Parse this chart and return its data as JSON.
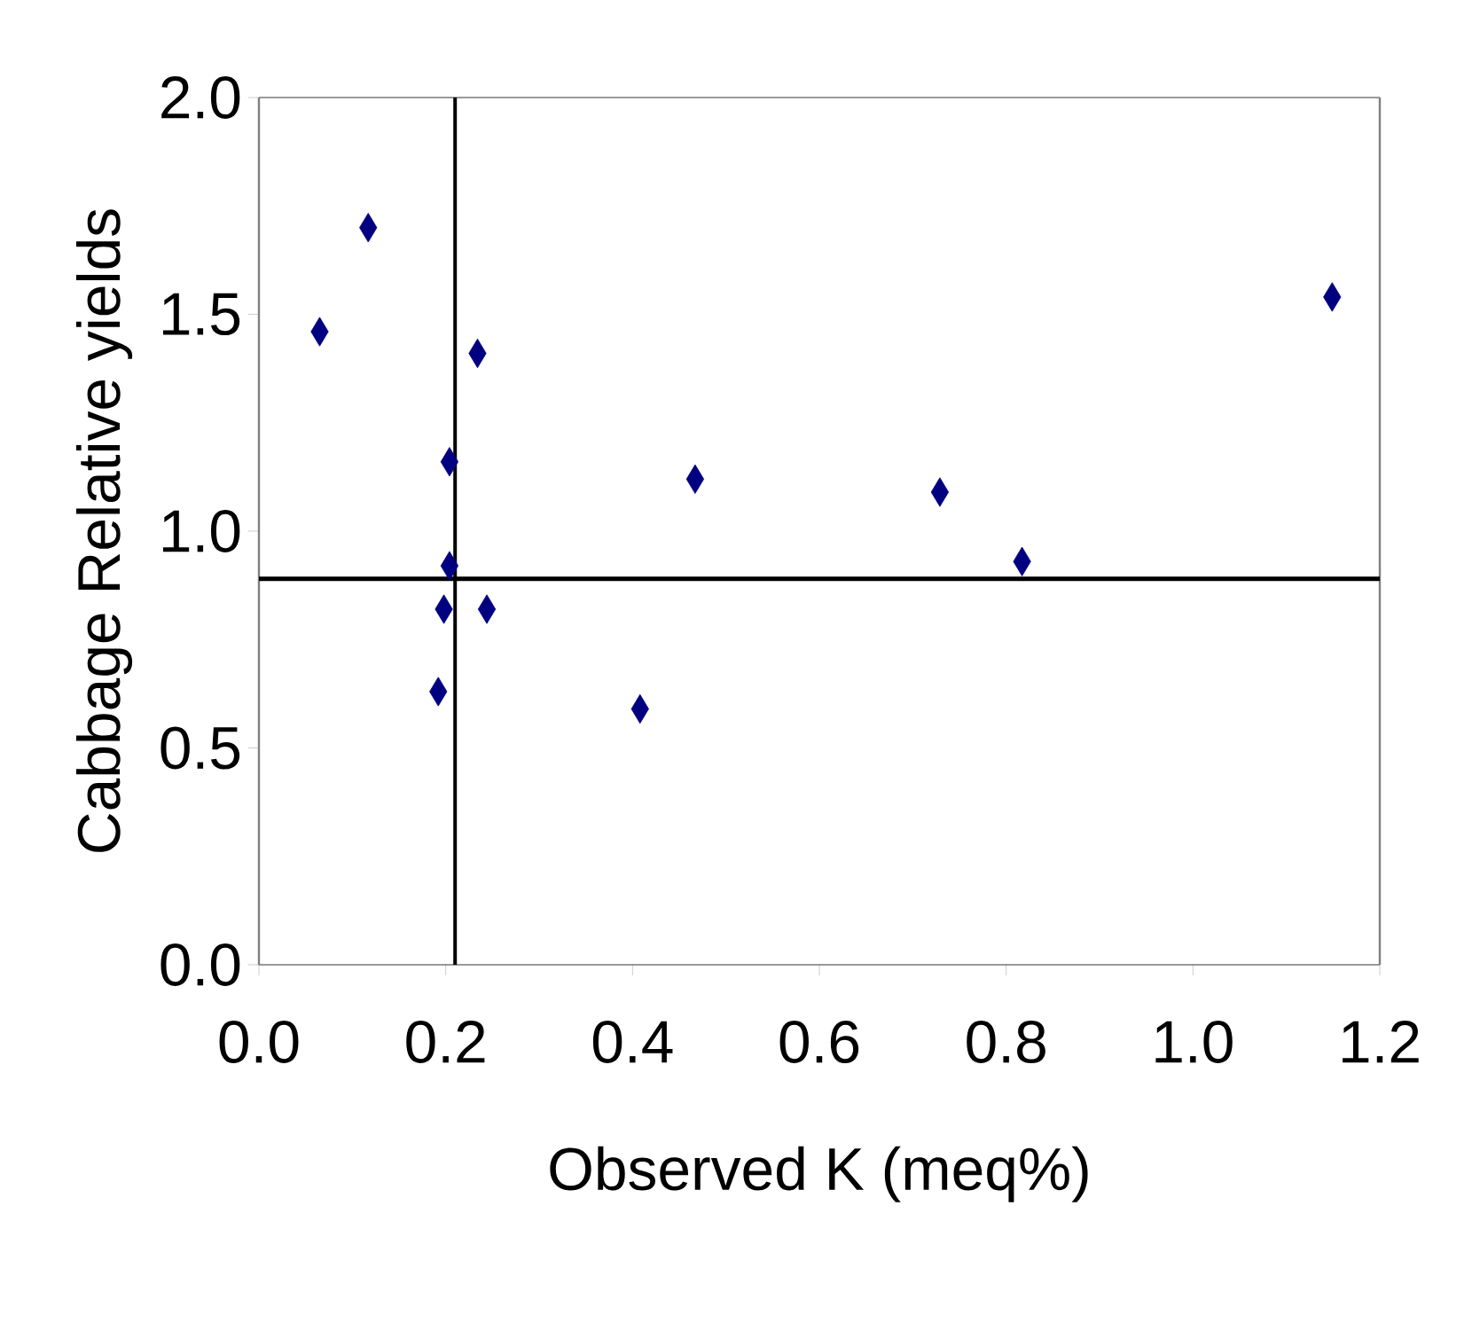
{
  "chart_data": {
    "type": "scatter",
    "xlabel": "Observed K (meq%)",
    "ylabel": "Cabbage Relative yields",
    "x": [
      0.065,
      0.117,
      0.234,
      0.204,
      0.204,
      0.198,
      0.244,
      0.192,
      0.408,
      0.467,
      0.729,
      0.817,
      1.149
    ],
    "values": [
      1.46,
      1.7,
      1.41,
      1.16,
      0.92,
      0.82,
      0.82,
      0.63,
      0.59,
      1.12,
      1.09,
      0.93,
      1.54
    ],
    "color": "#000080",
    "marker": "diamond",
    "xlim": [
      0,
      1.2
    ],
    "ylim": [
      0,
      2.0
    ],
    "xticks": [
      {
        "value": 0,
        "label": "0.0"
      },
      {
        "value": 0.2,
        "label": "0.2"
      },
      {
        "value": 0.4,
        "label": "0.4"
      },
      {
        "value": 0.6,
        "label": "0.6"
      },
      {
        "value": 0.8,
        "label": "0.8"
      },
      {
        "value": 1.0,
        "label": "1.0"
      },
      {
        "value": 1.2,
        "label": "1.2"
      }
    ],
    "yticks": [
      {
        "value": 0,
        "label": "0.0"
      },
      {
        "value": 0.5,
        "label": "0.5"
      },
      {
        "value": 1.0,
        "label": "1.0"
      },
      {
        "value": 1.5,
        "label": "1.5"
      },
      {
        "value": 2.0,
        "label": "2.0"
      }
    ],
    "ref_lines": [
      {
        "axis": "x",
        "value": 0.21,
        "color": "#000000"
      },
      {
        "axis": "y",
        "value": 0.89,
        "color": "#000000"
      }
    ]
  }
}
